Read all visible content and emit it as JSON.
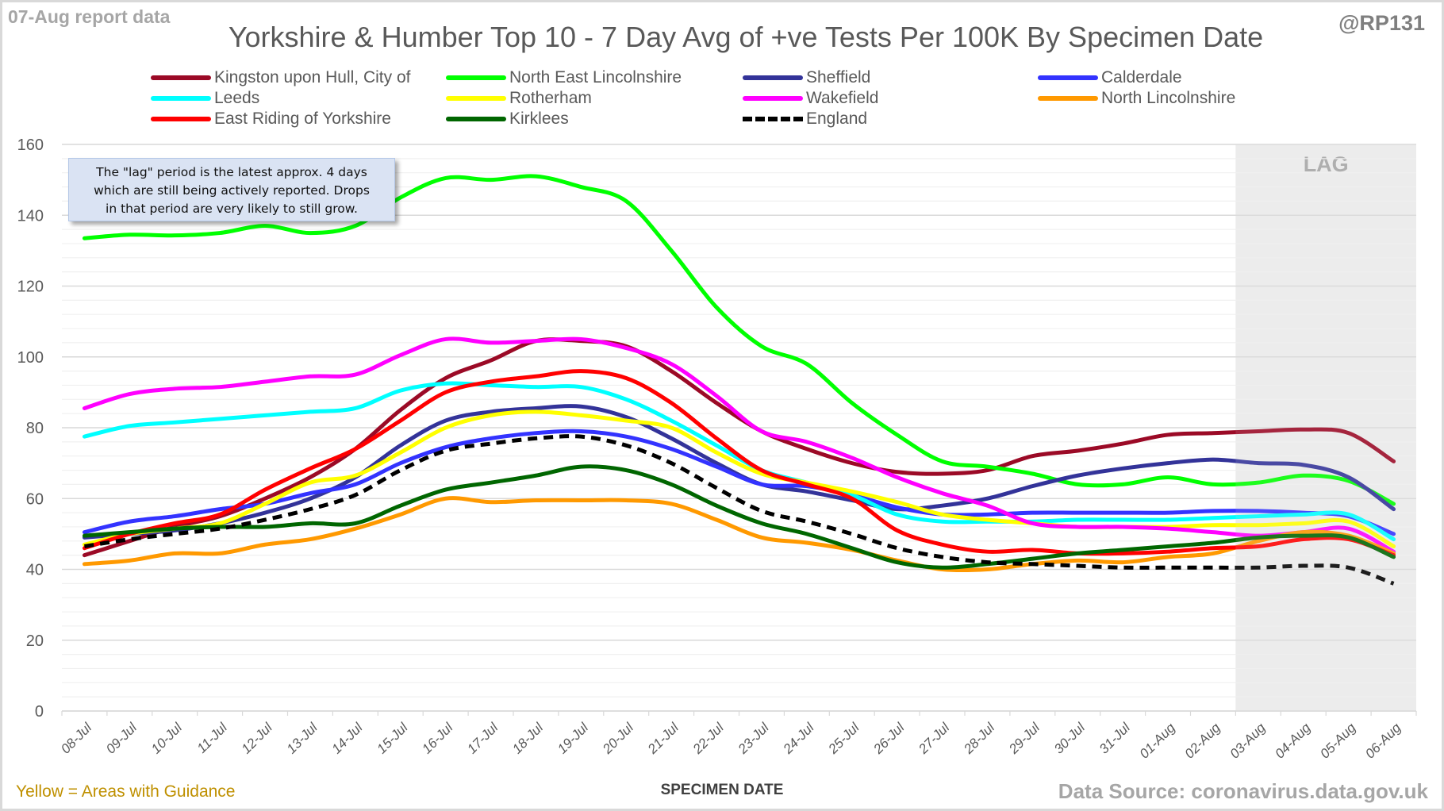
{
  "header": {
    "report_date": "07-Aug report data",
    "handle": "@RP131"
  },
  "note": {
    "lines": [
      "The \"lag\" period is the latest approx. 4 days",
      "which are still being actively reported.  Drops",
      "in that period are very likely to still grow."
    ]
  },
  "footer": {
    "guidance": "Yellow = Areas with Guidance",
    "source": "Data Source: coronavirus.data.gov.uk"
  },
  "chart_data": {
    "type": "line",
    "title": "Yorkshire & Humber Top 10 - 7 Day Avg of +ve Tests Per 100K By Specimen Date",
    "xlabel": "SPECIMEN DATE",
    "ylabel": "",
    "ylim": [
      0,
      160
    ],
    "yticks": [
      0,
      20,
      40,
      60,
      80,
      100,
      120,
      140,
      160
    ],
    "grid": true,
    "legend_position": "top",
    "lag_label": "LAG",
    "lag_start": "03-Aug",
    "x": [
      "08-Jul",
      "09-Jul",
      "10-Jul",
      "11-Jul",
      "12-Jul",
      "13-Jul",
      "14-Jul",
      "15-Jul",
      "16-Jul",
      "17-Jul",
      "18-Jul",
      "19-Jul",
      "20-Jul",
      "21-Jul",
      "22-Jul",
      "23-Jul",
      "24-Jul",
      "25-Jul",
      "26-Jul",
      "27-Jul",
      "28-Jul",
      "29-Jul",
      "30-Jul",
      "31-Jul",
      "01-Aug",
      "02-Aug",
      "03-Aug",
      "04-Aug",
      "05-Aug",
      "06-Aug"
    ],
    "series": [
      {
        "name": "Kingston upon Hull, City of",
        "color": "#9b0a26",
        "dash": false,
        "values": [
          44,
          48,
          52,
          55,
          60,
          66,
          74,
          85,
          94,
          99,
          104.5,
          104.5,
          103,
          96,
          87,
          79,
          74,
          70,
          67.5,
          67,
          68,
          72,
          73.5,
          75.5,
          78,
          78.5,
          79,
          79.5,
          78.5,
          70.5
        ]
      },
      {
        "name": "North East Lincolnshire",
        "color": "#00ff00",
        "dash": false,
        "values": [
          133.5,
          134.5,
          134.3,
          135,
          137,
          135,
          137,
          145,
          150.5,
          150,
          151,
          148,
          144,
          130,
          114,
          103,
          98,
          87,
          78,
          70.5,
          69,
          67,
          64,
          64,
          66,
          64,
          64.5,
          66.5,
          65,
          58.5
        ]
      },
      {
        "name": "Sheffield",
        "color": "#333399",
        "dash": false,
        "values": [
          49,
          50,
          51,
          53,
          56,
          60,
          66,
          75,
          82,
          84.5,
          85.5,
          86,
          83,
          77,
          70,
          64,
          62,
          59.5,
          57,
          58,
          60,
          63.5,
          66.5,
          68.5,
          70,
          71,
          70,
          69.5,
          66,
          57
        ]
      },
      {
        "name": "Calderdale",
        "color": "#3333ff",
        "dash": false,
        "values": [
          50.5,
          53.5,
          55,
          57,
          58.5,
          61.5,
          64,
          70,
          74.5,
          77,
          78.5,
          79,
          77.5,
          74,
          69,
          64,
          63.5,
          61,
          57.5,
          55.5,
          55.5,
          56,
          56,
          56,
          56,
          56.5,
          56.5,
          56,
          55,
          50
        ]
      },
      {
        "name": "Leeds",
        "color": "#00ffff",
        "dash": false,
        "values": [
          77.5,
          80.5,
          81.5,
          82.5,
          83.5,
          84.5,
          85.5,
          90.5,
          92.5,
          92,
          91.5,
          91.5,
          88,
          82,
          75,
          68,
          64.5,
          61,
          55.5,
          53.5,
          53.5,
          53.5,
          54,
          54,
          54,
          54.5,
          55,
          55.5,
          55.5,
          48.5
        ]
      },
      {
        "name": "Rotherham",
        "color": "#ffff00",
        "dash": false,
        "values": [
          47,
          50,
          51.5,
          53,
          58.5,
          64.5,
          66.5,
          73,
          80,
          83.5,
          84.5,
          83.5,
          82,
          80,
          73,
          67,
          64.5,
          62,
          59,
          55.5,
          54,
          53,
          52,
          52,
          52,
          52.5,
          52.5,
          53,
          53.5,
          46.5
        ]
      },
      {
        "name": "Wakefield",
        "color": "#ff00ff",
        "dash": false,
        "values": [
          85.5,
          89.5,
          91,
          91.5,
          93,
          94.5,
          95,
          100.5,
          105,
          104,
          104.5,
          105,
          102.5,
          98,
          89,
          79,
          76,
          71.5,
          66,
          61.5,
          58,
          53,
          52,
          52,
          51.5,
          50.5,
          49.5,
          50.5,
          51.5,
          45
        ]
      },
      {
        "name": "North Lincolnshire",
        "color": "#ff9900",
        "dash": false,
        "values": [
          41.5,
          42.5,
          44.5,
          44.5,
          47,
          48.5,
          51.5,
          55.5,
          60,
          59,
          59.5,
          59.5,
          59.5,
          58.5,
          54,
          49,
          47.5,
          45.5,
          42.5,
          40,
          40,
          41.5,
          42.5,
          42,
          43.5,
          44.5,
          48,
          50.5,
          49.5,
          44.5
        ]
      },
      {
        "name": "East Riding of Yorkshire",
        "color": "#ff0000",
        "dash": false,
        "values": [
          46,
          50,
          53,
          55.5,
          62.5,
          68.5,
          74,
          82,
          90,
          93,
          94.5,
          96,
          94,
          87,
          77,
          68,
          64,
          60,
          51,
          47,
          45,
          45.5,
          44.5,
          44.5,
          45,
          46,
          46.5,
          48.5,
          48.5,
          44
        ]
      },
      {
        "name": "Kirklees",
        "color": "#006600",
        "dash": false,
        "values": [
          49.5,
          50.5,
          51.5,
          52,
          52,
          53,
          53,
          58,
          62.5,
          64.5,
          66.5,
          69,
          68,
          64,
          58,
          53,
          50,
          46,
          42,
          40.5,
          41.5,
          43,
          44.5,
          45.5,
          46.5,
          47.5,
          49,
          49.5,
          49,
          43.5
        ]
      },
      {
        "name": "England",
        "color": "#000000",
        "dash": true,
        "values": [
          46.5,
          48.5,
          50,
          51.5,
          54,
          57,
          61,
          68,
          73.5,
          75.5,
          77,
          77.5,
          75,
          70,
          63,
          56.5,
          53.5,
          50,
          46,
          43.5,
          42,
          41.5,
          41,
          40.5,
          40.5,
          40.5,
          40.5,
          41,
          40.5,
          36
        ]
      }
    ]
  }
}
